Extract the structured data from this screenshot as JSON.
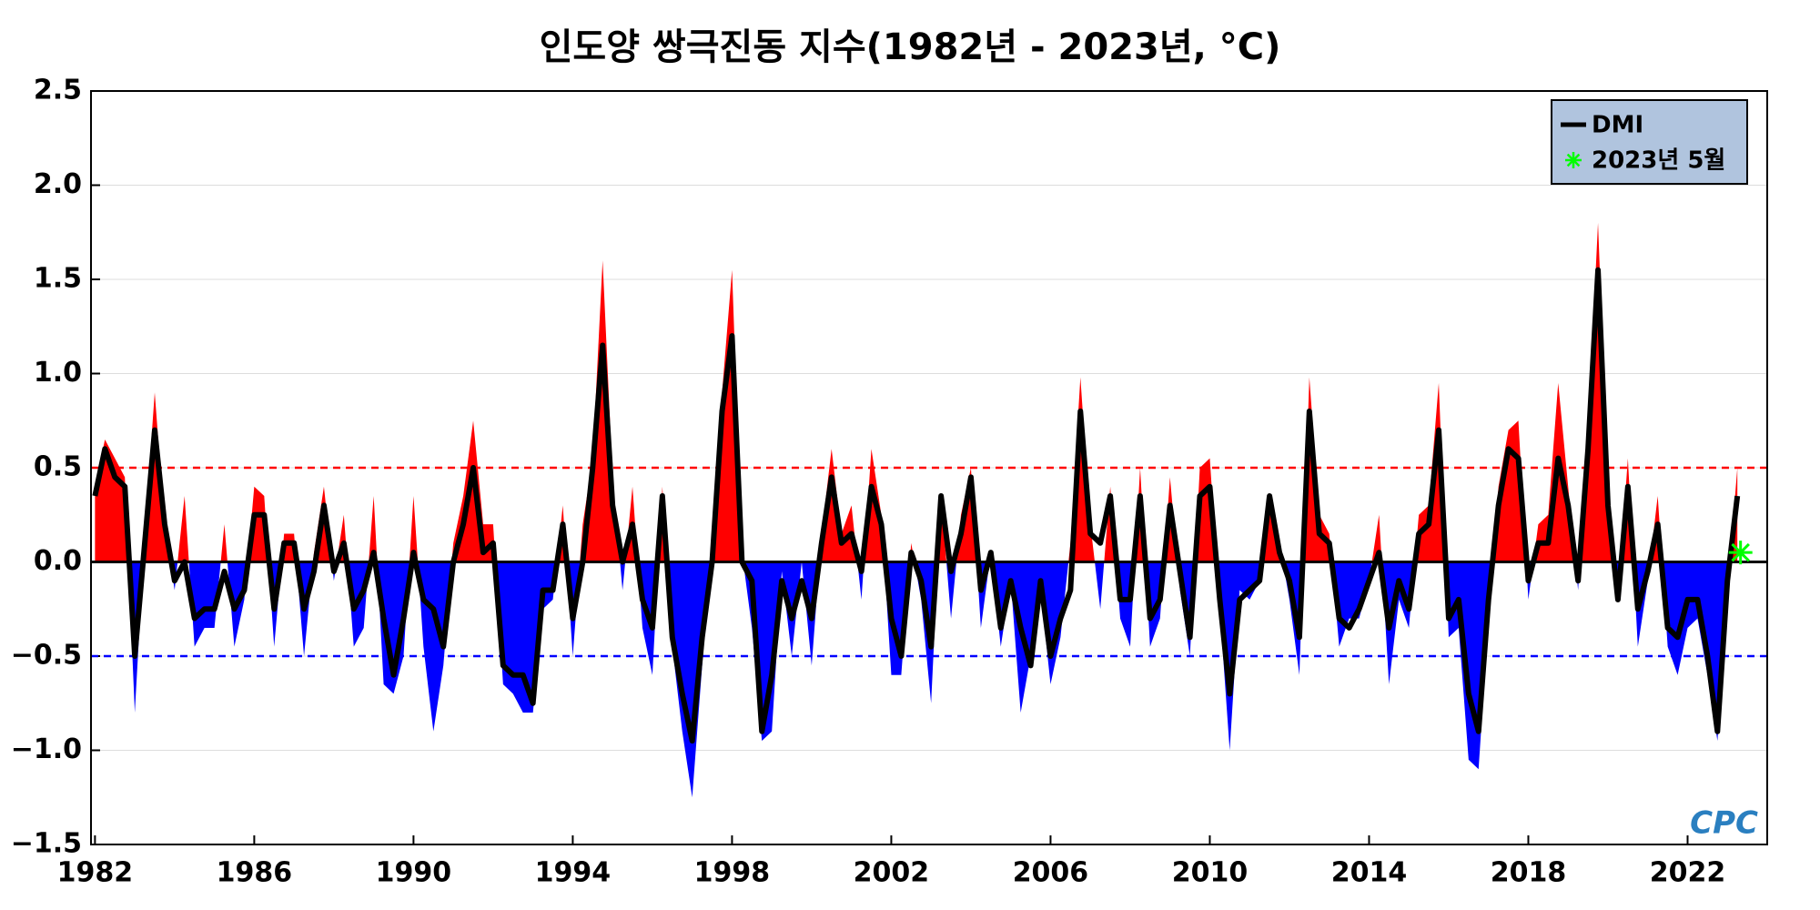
{
  "chart_data": {
    "type": "area-line",
    "title": "인도양 쌍극진동 지수(1982년 - 2023년, °C)",
    "xlim": [
      1981.9,
      2024
    ],
    "xticks": [
      1982,
      1986,
      1990,
      1994,
      1998,
      2002,
      2006,
      2010,
      2014,
      2018,
      2022
    ],
    "ylim": [
      -1.5,
      2.5
    ],
    "yticks": [
      {
        "value": -1.5,
        "label": "−1.5"
      },
      {
        "value": -1,
        "label": "−1.0"
      },
      {
        "value": -0.5,
        "label": "−0.5"
      },
      {
        "value": 0,
        "label": "0.0"
      },
      0.5,
      {
        "value": 1,
        "label": "1.0"
      },
      1.5,
      {
        "value": 2,
        "label": "2.0"
      },
      2.5
    ],
    "grid": true,
    "legend": "upper right",
    "reference_lines": [
      {
        "value": 0.5,
        "color": "#ff0000"
      },
      {
        "value": -0.5,
        "color": "#0000ff"
      }
    ],
    "x": [
      1982,
      1982.25,
      1982.5,
      1982.75,
      1983,
      1983.25,
      1983.5,
      1983.75,
      1984,
      1984.25,
      1984.5,
      1984.75,
      1985,
      1985.25,
      1985.5,
      1985.75,
      1986,
      1986.25,
      1986.5,
      1986.75,
      1987,
      1987.25,
      1987.5,
      1987.75,
      1988,
      1988.25,
      1988.5,
      1988.75,
      1989,
      1989.25,
      1989.5,
      1989.75,
      1990,
      1990.25,
      1990.5,
      1990.75,
      1991,
      1991.25,
      1991.5,
      1991.75,
      1992,
      1992.25,
      1992.5,
      1992.75,
      1993,
      1993.25,
      1993.5,
      1993.75,
      1994,
      1994.25,
      1994.5,
      1994.75,
      1995,
      1995.25,
      1995.5,
      1995.75,
      1996,
      1996.25,
      1996.5,
      1996.75,
      1997,
      1997.25,
      1997.5,
      1997.75,
      1998,
      1998.25,
      1998.5,
      1998.75,
      1999,
      1999.25,
      1999.5,
      1999.75,
      2000,
      2000.25,
      2000.5,
      2000.75,
      2001,
      2001.25,
      2001.5,
      2001.75,
      2002,
      2002.25,
      2002.5,
      2002.75,
      2003,
      2003.25,
      2003.5,
      2003.75,
      2004,
      2004.25,
      2004.5,
      2004.75,
      2005,
      2005.25,
      2005.5,
      2005.75,
      2006,
      2006.25,
      2006.5,
      2006.75,
      2007,
      2007.25,
      2007.5,
      2007.75,
      2008,
      2008.25,
      2008.5,
      2008.75,
      2009,
      2009.25,
      2009.5,
      2009.75,
      2010,
      2010.25,
      2010.5,
      2010.75,
      2011,
      2011.25,
      2011.5,
      2011.75,
      2012,
      2012.25,
      2012.5,
      2012.75,
      2013,
      2013.25,
      2013.5,
      2013.75,
      2014,
      2014.25,
      2014.5,
      2014.75,
      2015,
      2015.25,
      2015.5,
      2015.75,
      2016,
      2016.25,
      2016.5,
      2016.75,
      2017,
      2017.25,
      2017.5,
      2017.75,
      2018,
      2018.25,
      2018.5,
      2018.75,
      2019,
      2019.25,
      2019.5,
      2019.75,
      2020,
      2020.25,
      2020.5,
      2020.75,
      2021,
      2021.25,
      2021.5,
      2021.75,
      2022,
      2022.25,
      2022.5,
      2022.75,
      2023,
      2023.25
    ],
    "series": [
      {
        "color_positive": "#ff0000",
        "color_negative": "#0000ff",
        "values": [
          0.4,
          0.65,
          0.55,
          0.45,
          -0.8,
          0.15,
          0.9,
          0.2,
          -0.15,
          0.35,
          -0.45,
          -0.35,
          -0.35,
          0.2,
          -0.45,
          -0.2,
          0.4,
          0.35,
          -0.45,
          0.15,
          0.15,
          -0.5,
          0.05,
          0.4,
          -0.1,
          0.25,
          -0.45,
          -0.35,
          0.35,
          -0.65,
          -0.7,
          -0.5,
          0.35,
          -0.45,
          -0.9,
          -0.55,
          0.1,
          0.35,
          0.75,
          0.2,
          0.2,
          -0.65,
          -0.7,
          -0.8,
          -0.8,
          -0.25,
          -0.2,
          0.3,
          -0.5,
          0.2,
          0.55,
          1.6,
          0.45,
          -0.15,
          0.4,
          -0.35,
          -0.6,
          0.4,
          -0.45,
          -0.9,
          -1.25,
          -0.55,
          0.1,
          0.9,
          1.55,
          0.05,
          -0.35,
          -0.95,
          -0.9,
          -0.05,
          -0.5,
          0,
          -0.55,
          0.15,
          0.6,
          0.15,
          0.3,
          -0.2,
          0.6,
          0.25,
          -0.6,
          -0.6,
          0.1,
          -0.2,
          -0.75,
          0.35,
          -0.3,
          0.25,
          0.5,
          -0.35,
          0.05,
          -0.45,
          -0.1,
          -0.8,
          -0.5,
          -0.15,
          -0.65,
          -0.4,
          0.1,
          0.98,
          0.2,
          -0.25,
          0.4,
          -0.3,
          -0.45,
          0.5,
          -0.45,
          -0.3,
          0.45,
          -0.15,
          -0.5,
          0.5,
          0.55,
          -0.25,
          -1,
          -0.15,
          -0.2,
          -0.1,
          0.35,
          0.1,
          -0.2,
          -0.6,
          0.98,
          0.25,
          0.15,
          -0.45,
          -0.3,
          -0.3,
          -0.1,
          0.25,
          -0.65,
          -0.2,
          -0.35,
          0.25,
          0.3,
          0.95,
          -0.4,
          -0.35,
          -1.05,
          -1.1,
          -0.3,
          0.4,
          0.7,
          0.75,
          -0.2,
          0.2,
          0.25,
          0.95,
          0.4,
          -0.15,
          0.7,
          1.8,
          0.4,
          -0.2,
          0.55,
          -0.45,
          -0.1,
          0.35,
          -0.45,
          -0.6,
          -0.35,
          -0.3,
          -0.6,
          -0.95,
          -0.15,
          0.5
        ]
      },
      {
        "name": "DMI",
        "color": "#000000",
        "values": [
          0.35,
          0.6,
          0.45,
          0.4,
          -0.5,
          0.1,
          0.7,
          0.2,
          -0.1,
          0,
          -0.3,
          -0.25,
          -0.25,
          -0.05,
          -0.25,
          -0.15,
          0.25,
          0.25,
          -0.25,
          0.1,
          0.1,
          -0.25,
          -0.05,
          0.3,
          -0.05,
          0.1,
          -0.25,
          -0.15,
          0.05,
          -0.3,
          -0.6,
          -0.3,
          0.05,
          -0.2,
          -0.25,
          -0.45,
          0,
          0.2,
          0.5,
          0.05,
          0.1,
          -0.55,
          -0.6,
          -0.6,
          -0.75,
          -0.15,
          -0.15,
          0.2,
          -0.3,
          0,
          0.5,
          1.15,
          0.3,
          0,
          0.2,
          -0.2,
          -0.35,
          0.35,
          -0.4,
          -0.7,
          -0.95,
          -0.4,
          0,
          0.8,
          1.2,
          0,
          -0.1,
          -0.9,
          -0.6,
          -0.1,
          -0.3,
          -0.1,
          -0.3,
          0.1,
          0.45,
          0.1,
          0.15,
          -0.05,
          0.4,
          0.2,
          -0.3,
          -0.5,
          0.05,
          -0.1,
          -0.45,
          0.35,
          -0.05,
          0.15,
          0.45,
          -0.15,
          0.05,
          -0.35,
          -0.1,
          -0.35,
          -0.55,
          -0.1,
          -0.5,
          -0.3,
          -0.15,
          0.8,
          0.15,
          0.1,
          0.35,
          -0.2,
          -0.2,
          0.35,
          -0.3,
          -0.2,
          0.3,
          -0.05,
          -0.4,
          0.35,
          0.4,
          -0.2,
          -0.7,
          -0.2,
          -0.15,
          -0.1,
          0.35,
          0.05,
          -0.1,
          -0.4,
          0.8,
          0.15,
          0.1,
          -0.3,
          -0.35,
          -0.25,
          -0.1,
          0.05,
          -0.35,
          -0.1,
          -0.25,
          0.15,
          0.2,
          0.7,
          -0.3,
          -0.2,
          -0.7,
          -0.9,
          -0.2,
          0.3,
          0.6,
          0.55,
          -0.1,
          0.1,
          0.1,
          0.55,
          0.3,
          -0.1,
          0.6,
          1.55,
          0.3,
          -0.2,
          0.4,
          -0.25,
          -0.05,
          0.2,
          -0.35,
          -0.4,
          -0.2,
          -0.2,
          -0.5,
          -0.9,
          -0.1,
          0.35
        ]
      }
    ],
    "highlight": {
      "name": "2023년 5월",
      "color": "#00ff00",
      "x": 2023.33,
      "value": 0.05
    },
    "watermark": "CPC"
  }
}
